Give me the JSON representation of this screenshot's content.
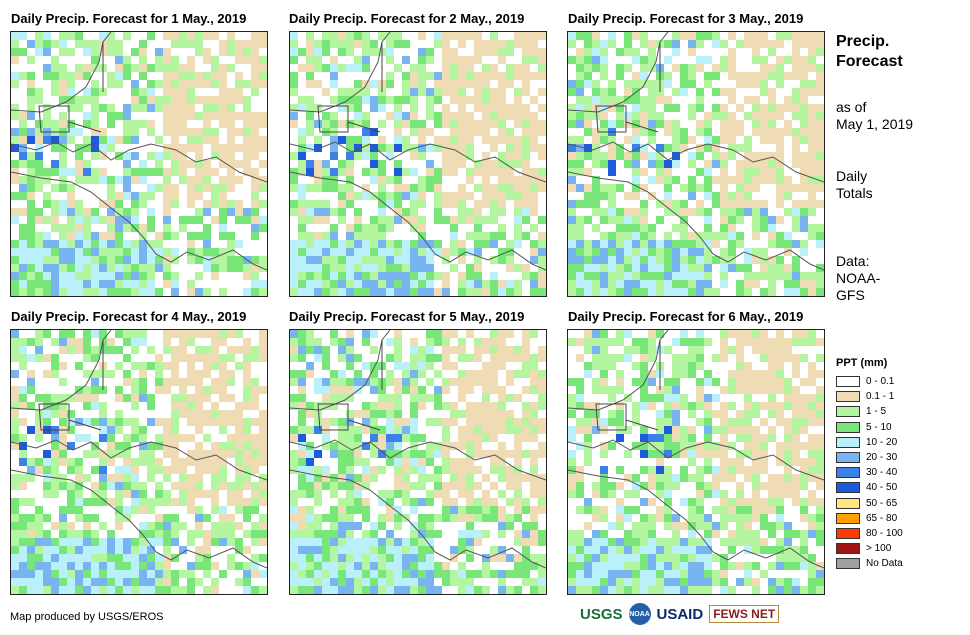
{
  "panels": [
    {
      "title": "Daily Precip. Forecast for 1 May., 2019"
    },
    {
      "title": "Daily Precip. Forecast for 2 May., 2019"
    },
    {
      "title": "Daily Precip. Forecast for 3 May., 2019"
    },
    {
      "title": "Daily Precip. Forecast for 4 May., 2019"
    },
    {
      "title": "Daily Precip. Forecast for 5 May., 2019"
    },
    {
      "title": "Daily Precip. Forecast for 6 May., 2019"
    }
  ],
  "sidebar": {
    "title_line1": "Precip.",
    "title_line2": "Forecast",
    "as_of_line1": "as of",
    "as_of_line2": "May 1, 2019",
    "daily_line1": "Daily",
    "daily_line2": "Totals",
    "data_line1": "Data:",
    "data_line2": "NOAA-",
    "data_line3": "GFS"
  },
  "legend": {
    "title": "PPT (mm)",
    "items": [
      {
        "label": "0 - 0.1",
        "color": "#ffffff"
      },
      {
        "label": "0.1 - 1",
        "color": "#f0dcb4"
      },
      {
        "label": "1 - 5",
        "color": "#b4f5a0"
      },
      {
        "label": "5 - 10",
        "color": "#78e678"
      },
      {
        "label": "10 - 20",
        "color": "#b9f0fa"
      },
      {
        "label": "20 - 30",
        "color": "#78b4f0"
      },
      {
        "label": "30 - 40",
        "color": "#3c82e6"
      },
      {
        "label": "40 - 50",
        "color": "#1e5adc"
      },
      {
        "label": "50 - 65",
        "color": "#ffe682"
      },
      {
        "label": "65 - 80",
        "color": "#ffa000"
      },
      {
        "label": "80 - 100",
        "color": "#ff3c00"
      },
      {
        "label": "> 100",
        "color": "#a01414"
      },
      {
        "label": "No Data",
        "color": "#a0a0a0"
      }
    ]
  },
  "footer": {
    "credit": "Map produced by USGS/EROS",
    "logos": {
      "usgs": "USGS",
      "noaa": "NOAA",
      "usaid": "USAID",
      "fewsnet": "FEWS NET"
    }
  }
}
